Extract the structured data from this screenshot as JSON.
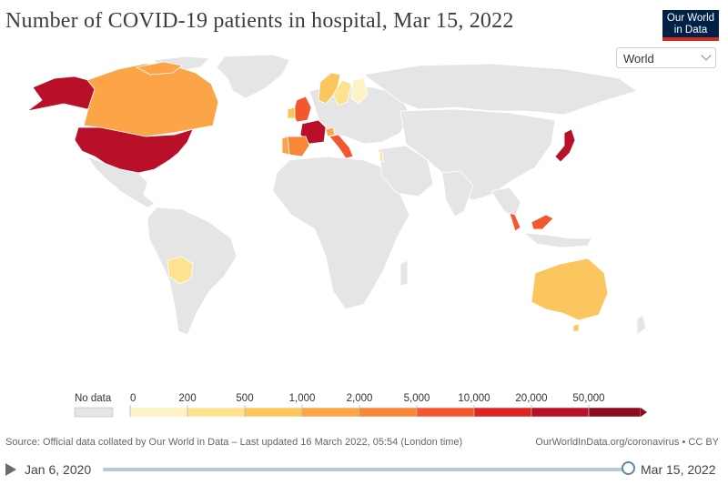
{
  "title": "Number of COVID-19 patients in hospital, Mar 15, 2022",
  "logo": {
    "line1": "Our World",
    "line2": "in Data"
  },
  "region_select": {
    "value": "World"
  },
  "colors": {
    "no_data": "#e5e5e5",
    "border": "#ffffff",
    "scale": [
      "#fef3c4",
      "#fde38f",
      "#fcc65e",
      "#fba448",
      "#f88738",
      "#f3572f",
      "#dc2424",
      "#b90f28",
      "#8a0a1e"
    ]
  },
  "map": {
    "countries_with_data": [
      {
        "name": "United States",
        "bin": 7
      },
      {
        "name": "Canada",
        "bin": 4
      },
      {
        "name": "Alaska",
        "bin": 7
      },
      {
        "name": "Bolivia",
        "bin": 1
      },
      {
        "name": "United Kingdom",
        "bin": 6
      },
      {
        "name": "Ireland",
        "bin": 3
      },
      {
        "name": "France",
        "bin": 7
      },
      {
        "name": "Spain",
        "bin": 5
      },
      {
        "name": "Portugal",
        "bin": 4
      },
      {
        "name": "Italy",
        "bin": 6
      },
      {
        "name": "Switzerland",
        "bin": 4
      },
      {
        "name": "Sweden",
        "bin": 2
      },
      {
        "name": "Finland",
        "bin": 1
      },
      {
        "name": "Norway",
        "bin": 3
      },
      {
        "name": "Israel",
        "bin": 2
      },
      {
        "name": "Japan",
        "bin": 7
      },
      {
        "name": "Malaysia",
        "bin": 5
      },
      {
        "name": "Australia",
        "bin": 3
      }
    ]
  },
  "legend": {
    "no_data_label": "No data",
    "tick_labels": [
      "0",
      "200",
      "500",
      "1,000",
      "2,000",
      "5,000",
      "10,000",
      "20,000",
      "50,000"
    ]
  },
  "source": "Source: Official data collated by Our World in Data – Last updated 16 March 2022, 05:54 (London time)",
  "site": "OurWorldInData.org/coronavirus • CC BY",
  "timeline": {
    "start": "Jan 6, 2020",
    "end": "Mar 15, 2022",
    "position": 1.0
  }
}
